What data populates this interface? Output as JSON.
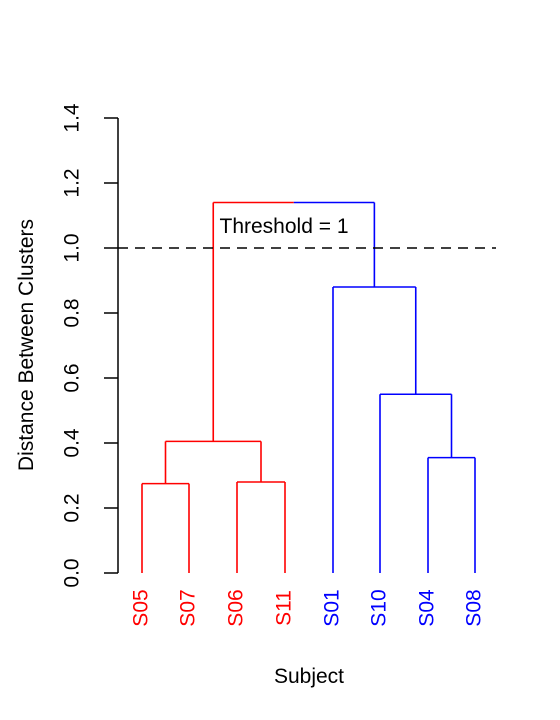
{
  "chart_data": {
    "type": "dendrogram",
    "title": "",
    "xlabel": "Subject",
    "ylabel": "Distance Between Clusters",
    "ylim": [
      0.0,
      1.4
    ],
    "yticks": [
      "0.0",
      "0.2",
      "0.4",
      "0.6",
      "0.8",
      "1.0",
      "1.2",
      "1.4"
    ],
    "leaves": [
      "S05",
      "S07",
      "S06",
      "S11",
      "S01",
      "S10",
      "S04",
      "S08"
    ],
    "leaf_groups": [
      "red",
      "red",
      "red",
      "red",
      "blue",
      "blue",
      "blue",
      "blue"
    ],
    "colors": {
      "red": "#ff0000",
      "blue": "#0000ff",
      "axis": "#000000"
    },
    "merges": [
      {
        "left": "S05",
        "right": "S07",
        "height": 0.275,
        "group": "red"
      },
      {
        "left": "S06",
        "right": "S11",
        "height": 0.28,
        "group": "red"
      },
      {
        "left": "S04",
        "right": "S08",
        "height": 0.355,
        "group": "blue"
      },
      {
        "left": "(S05,S07)",
        "right": "(S06,S11)",
        "height": 0.405,
        "group": "red"
      },
      {
        "left": "S10",
        "right": "(S04,S08)",
        "height": 0.55,
        "group": "blue"
      },
      {
        "left": "S01",
        "right": "(S10,(S04,S08))",
        "height": 0.88,
        "group": "blue"
      },
      {
        "left": "red-cluster",
        "right": "blue-cluster",
        "height": 1.14,
        "group": "mixed"
      }
    ],
    "threshold": {
      "value": 1.0,
      "label": "Threshold = 1"
    }
  }
}
